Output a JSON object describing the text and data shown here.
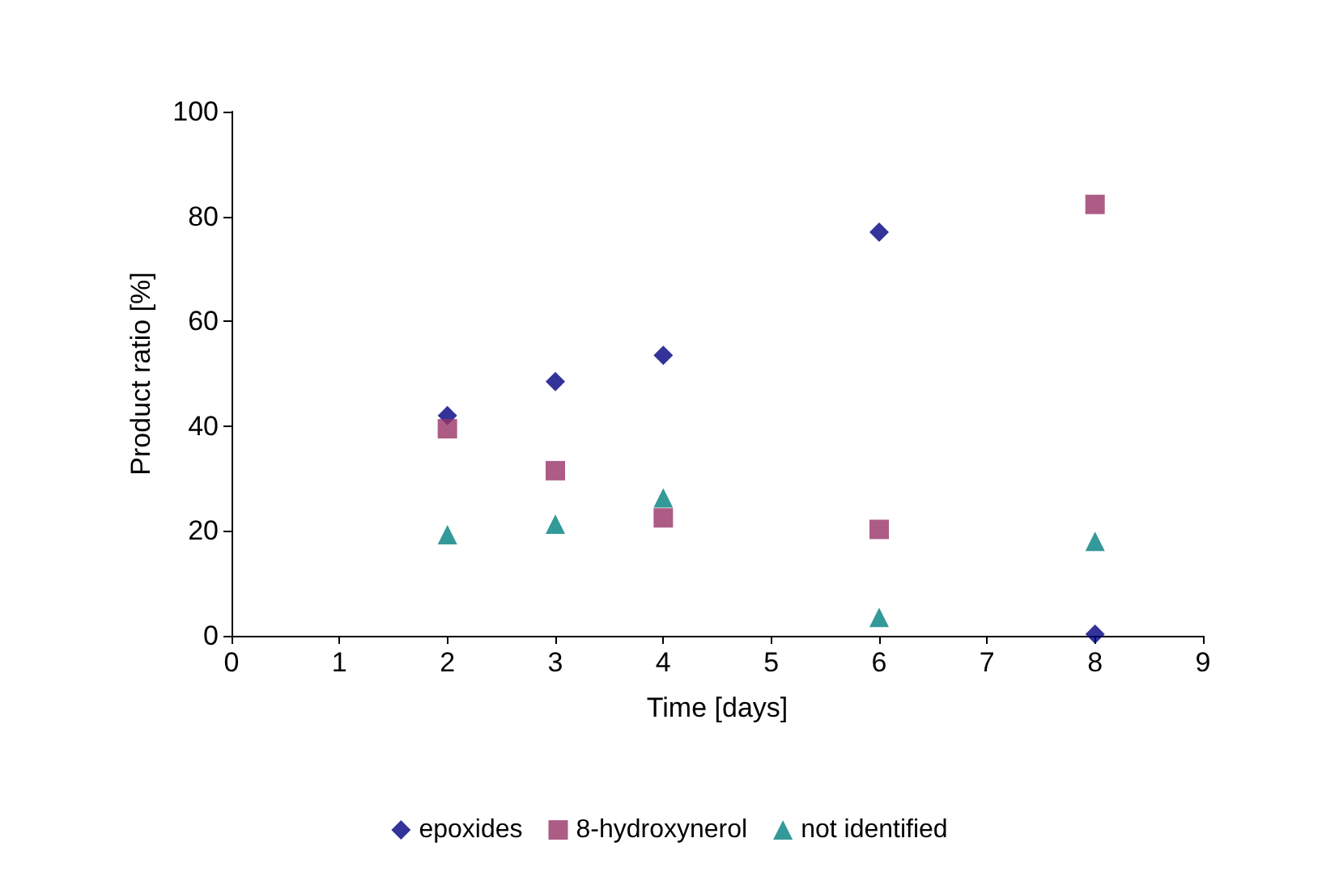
{
  "chart_data": {
    "type": "scatter",
    "xlabel": "Time [days]",
    "ylabel": "Product ratio [%]",
    "x": [
      2,
      3,
      4,
      6,
      8
    ],
    "series": [
      {
        "name": "epoxides",
        "color": "#000080",
        "marker": "diamond",
        "values": [
          42,
          48.5,
          53.5,
          77,
          0.3
        ]
      },
      {
        "name": "8-hydroxynerol",
        "color": "#993366",
        "marker": "square",
        "values": [
          39.5,
          31.5,
          22.5,
          20.3,
          82.3
        ]
      },
      {
        "name": "not identified",
        "color": "#008080",
        "marker": "triangle",
        "values": [
          19.3,
          21.3,
          26.3,
          3.5,
          18
        ]
      }
    ],
    "xlim": [
      0,
      9
    ],
    "xticks": [
      0,
      1,
      2,
      3,
      4,
      5,
      6,
      7,
      8,
      9
    ],
    "ylim": [
      0,
      100
    ],
    "yticks": [
      0,
      20,
      40,
      60,
      80,
      100
    ],
    "grid": false,
    "legend": "bottom"
  }
}
